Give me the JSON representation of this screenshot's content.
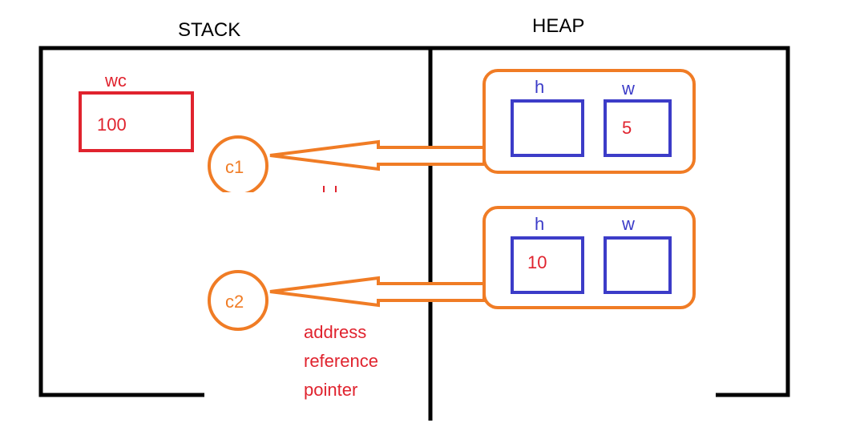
{
  "headings": {
    "stack": "STACK",
    "heap": "HEAP"
  },
  "stack": {
    "variable": {
      "name": "wc",
      "value": "100"
    },
    "references": [
      "c1",
      "c2"
    ]
  },
  "heap": {
    "objects": [
      {
        "fields": [
          {
            "name": "h",
            "value": ""
          },
          {
            "name": "w",
            "value": "5"
          }
        ]
      },
      {
        "fields": [
          {
            "name": "h",
            "value": "10"
          },
          {
            "name": "w",
            "value": ""
          }
        ]
      }
    ]
  },
  "annotation": {
    "lines": [
      "address",
      "reference",
      "pointer"
    ]
  },
  "colors": {
    "frame": "#000000",
    "stack_variable": "#e0232e",
    "reference": "#f07c25",
    "field_box": "#3c3cc8",
    "field_name": "#3c3cc8",
    "value_text": "#e0232e"
  }
}
